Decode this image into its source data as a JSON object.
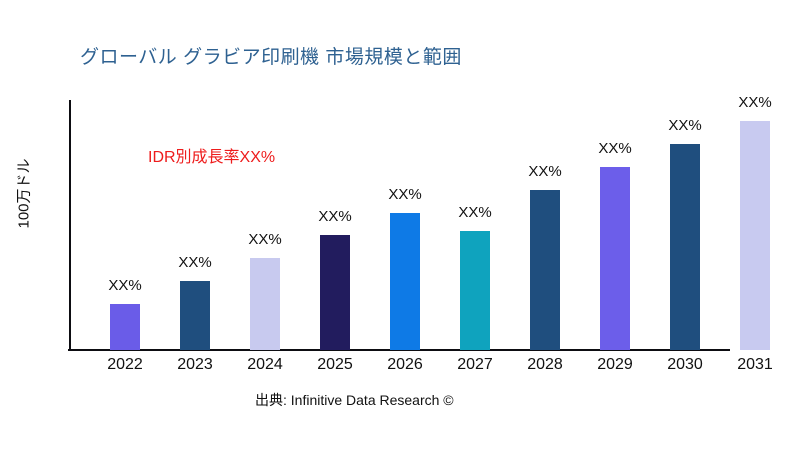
{
  "header": {
    "title": "グローバル グラビア印刷機 市場規模と範囲",
    "title_color": "#2e6191"
  },
  "annotation": {
    "text": "IDR別成長率XX%",
    "color": "#ee1c1c"
  },
  "footer": {
    "source": "出典: Infinitive Data Research ©"
  },
  "chart_data": {
    "type": "bar",
    "title": "グローバル グラビア印刷機 市場規模と範囲",
    "xlabel": "",
    "ylabel": "100万ドル",
    "annotation": "IDR別成長率XX%",
    "source": "出典: Infinitive Data Research ©",
    "grid": false,
    "legend": false,
    "categories": [
      "2022",
      "2023",
      "2024",
      "2025",
      "2026",
      "2027",
      "2028",
      "2029",
      "2030",
      "2031"
    ],
    "bar_labels": [
      "XX%",
      "XX%",
      "XX%",
      "XX%",
      "XX%",
      "XX%",
      "XX%",
      "XX%",
      "XX%",
      "XX%"
    ],
    "values_relative_pct_of_max": [
      20,
      30,
      40,
      50,
      60,
      52,
      70,
      80,
      90,
      100
    ],
    "colors": [
      "#6a5ce8",
      "#1f4e7e",
      "#c8caef",
      "#221c5e",
      "#0e7ae6",
      "#0fa3be",
      "#1f4e7e",
      "#6c5eea",
      "#1f4e7e",
      "#c8caf0"
    ],
    "axis_color": "#0d0d12"
  }
}
